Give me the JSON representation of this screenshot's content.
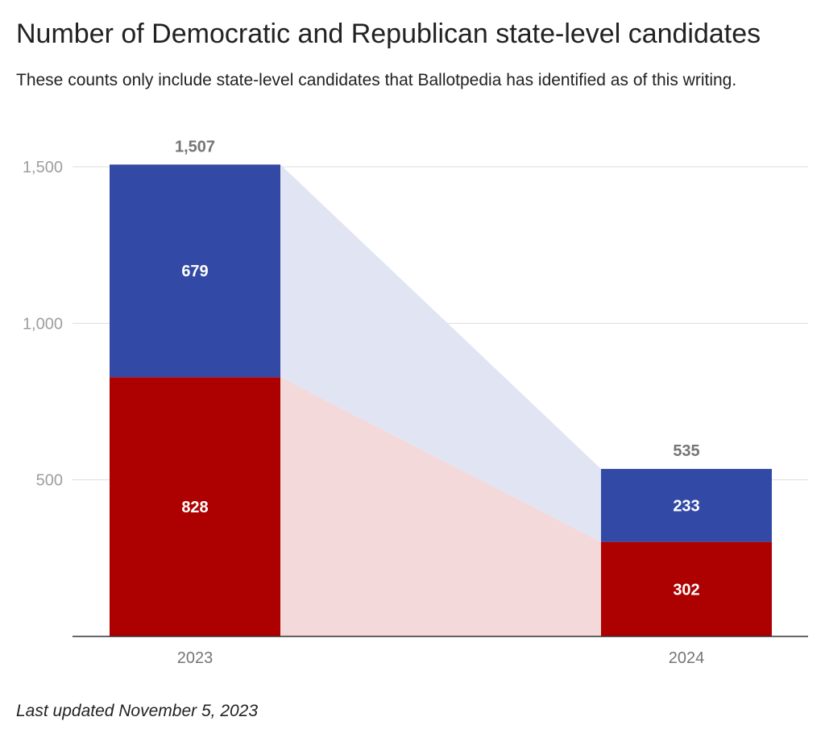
{
  "title": "Number of Democratic and Republican state-level candidates",
  "subtitle": "These counts only include state-level candidates that Ballotpedia has identified as of this writing.",
  "footnote": "Last updated November 5, 2023",
  "colors": {
    "democratic": "#3349a6",
    "republican": "#ad0000",
    "democratic_band": "#e0e4f3",
    "republican_band": "#f4d9da",
    "grid": "#dddddd",
    "axis": "#333333"
  },
  "chart_data": {
    "type": "bar",
    "stacked": true,
    "categories": [
      "2023",
      "2024"
    ],
    "series": [
      {
        "values": [
          828,
          302
        ],
        "color": "#ad0000"
      },
      {
        "values": [
          679,
          233
        ],
        "color": "#3349a6"
      }
    ],
    "totals": [
      1507,
      535
    ],
    "total_labels": [
      "1,507",
      "535"
    ],
    "segment_labels": [
      [
        "828",
        "679"
      ],
      [
        "302",
        "233"
      ]
    ],
    "ylim": [
      0,
      1500
    ],
    "yticks": [
      500,
      1000,
      1500
    ],
    "ytick_labels": [
      "500",
      "1,000",
      "1,500"
    ],
    "grid": true,
    "connecting_bands": true
  }
}
